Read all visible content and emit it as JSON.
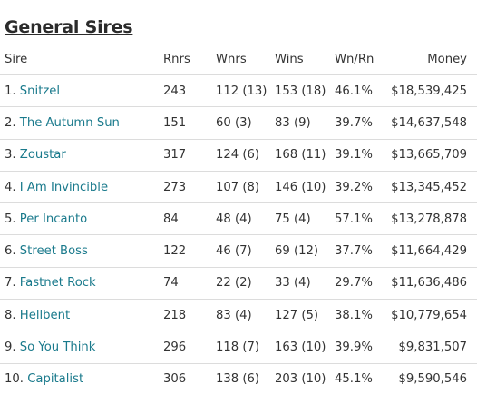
{
  "title": "General Sires",
  "columns": [
    "Sire",
    "Rnrs",
    "Wnrs",
    "Wins",
    "Wn/Rn",
    "Money"
  ],
  "rows": [
    {
      "rank": "1.",
      "sire": "Snitzel",
      "rnrs": "243",
      "wnrs": "112 (13)",
      "wins": "153 (18)",
      "wnrn": "46.1%",
      "money": "$18,539,425"
    },
    {
      "rank": "2.",
      "sire": "The Autumn Sun",
      "rnrs": "151",
      "wnrs": "60 (3)",
      "wins": "83 (9)",
      "wnrn": "39.7%",
      "money": "$14,637,548"
    },
    {
      "rank": "3.",
      "sire": "Zoustar",
      "rnrs": "317",
      "wnrs": "124 (6)",
      "wins": "168 (11)",
      "wnrn": "39.1%",
      "money": "$13,665,709"
    },
    {
      "rank": "4.",
      "sire": "I Am Invincible",
      "rnrs": "273",
      "wnrs": "107 (8)",
      "wins": "146 (10)",
      "wnrn": "39.2%",
      "money": "$13,345,452"
    },
    {
      "rank": "5.",
      "sire": "Per Incanto",
      "rnrs": "84",
      "wnrs": "48 (4)",
      "wins": "75 (4)",
      "wnrn": "57.1%",
      "money": "$13,278,878"
    },
    {
      "rank": "6.",
      "sire": "Street Boss",
      "rnrs": "122",
      "wnrs": "46 (7)",
      "wins": "69 (12)",
      "wnrn": "37.7%",
      "money": "$11,664,429"
    },
    {
      "rank": "7.",
      "sire": "Fastnet Rock",
      "rnrs": "74",
      "wnrs": "22 (2)",
      "wins": "33 (4)",
      "wnrn": "29.7%",
      "money": "$11,636,486"
    },
    {
      "rank": "8.",
      "sire": "Hellbent",
      "rnrs": "218",
      "wnrs": "83 (4)",
      "wins": "127 (5)",
      "wnrn": "38.1%",
      "money": "$10,779,654"
    },
    {
      "rank": "9.",
      "sire": "So You Think",
      "rnrs": "296",
      "wnrs": "118 (7)",
      "wins": "163 (10)",
      "wnrn": "39.9%",
      "money": "$9,831,507"
    },
    {
      "rank": "10.",
      "sire": "Capitalist",
      "rnrs": "306",
      "wnrs": "138 (6)",
      "wins": "203 (10)",
      "wnrn": "45.1%",
      "money": "$9,590,546"
    }
  ],
  "colors": {
    "link": "#1a7a8c",
    "text": "#333333",
    "border": "#dcdcdc"
  }
}
